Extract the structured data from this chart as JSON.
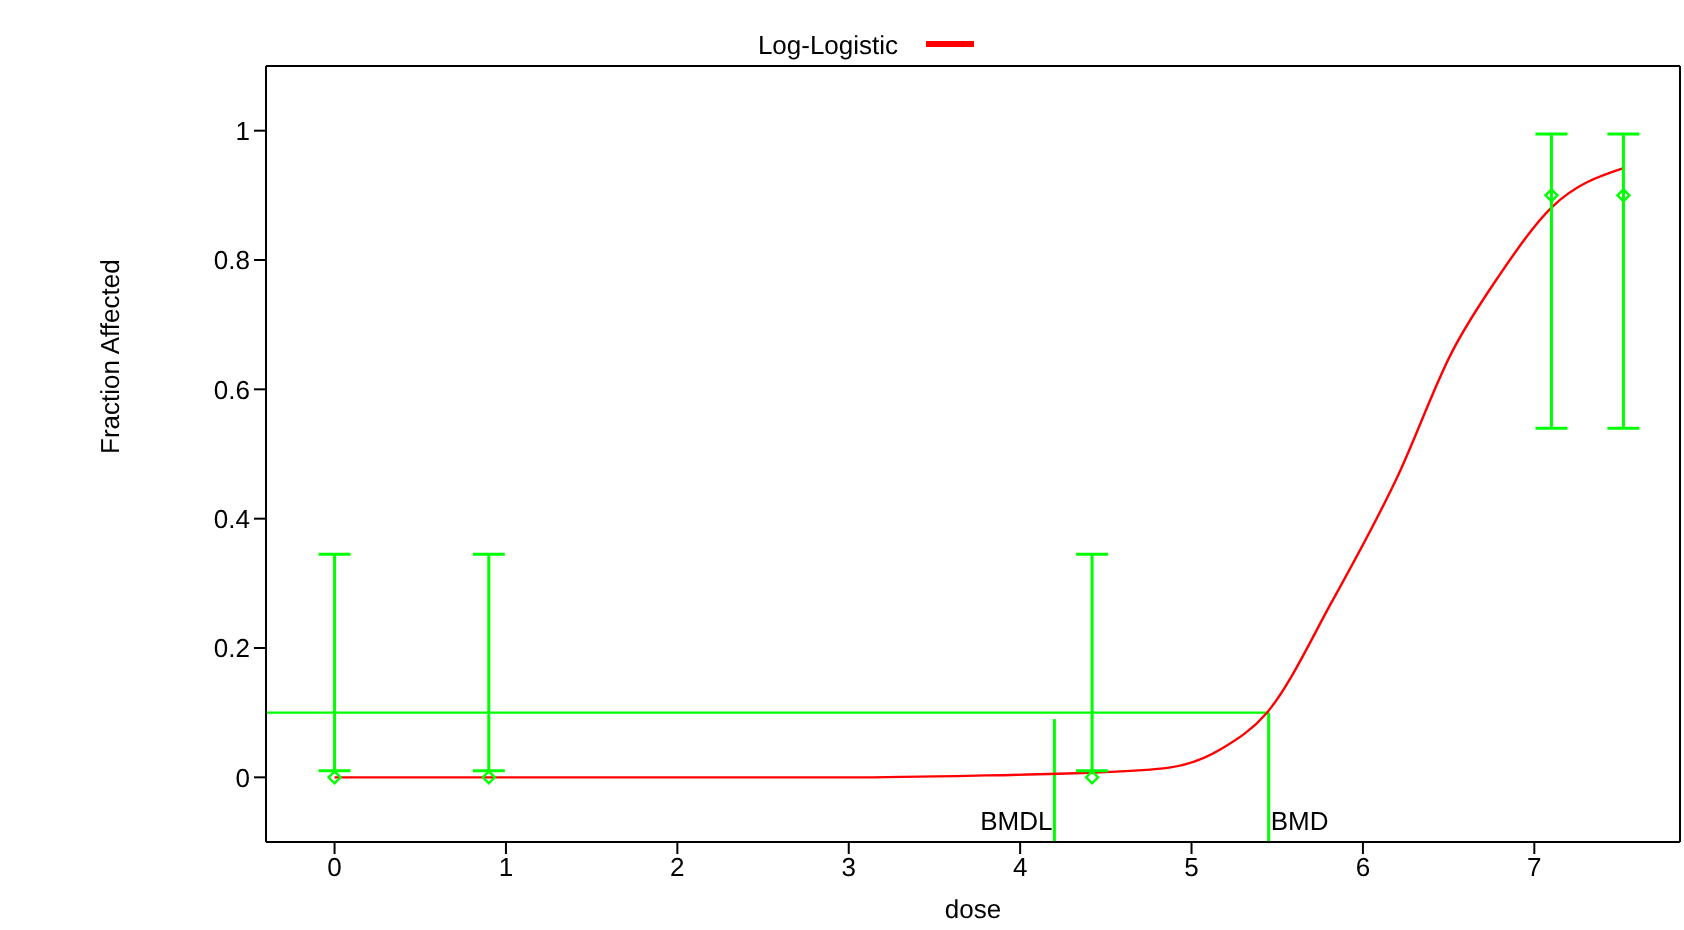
{
  "chart_data": {
    "type": "scatter",
    "xlabel": "dose",
    "ylabel": "Fraction Affected",
    "xlim": [
      -0.4,
      7.85
    ],
    "xticks": [
      0,
      1,
      2,
      3,
      4,
      5,
      6,
      7
    ],
    "ylim": [
      -0.1,
      1.1
    ],
    "yticks": [
      0,
      0.2,
      0.4,
      0.6,
      0.8,
      1
    ],
    "grid": false,
    "legend": "top",
    "marker": "diamond",
    "series": [
      {
        "name": "Log-Logistic",
        "type": "line",
        "color": "#ff0000",
        "marker": "none",
        "x": [
          0,
          1,
          2,
          3,
          3.8,
          4.4,
          4.87,
          5.18,
          5.44,
          5.82,
          6.2,
          6.52,
          6.79,
          7.1,
          7.52
        ],
        "values": [
          0,
          0,
          0,
          0,
          0.003,
          0.007,
          0.015,
          0.045,
          0.1,
          0.272,
          0.464,
          0.658,
          0.774,
          0.881,
          0.942
        ]
      },
      {
        "color": "#00ff00",
        "x": [
          0,
          0.9,
          4.42,
          7.1,
          7.52
        ],
        "values": [
          0,
          0,
          0,
          0.9,
          0.9
        ],
        "errors": [
          [
            0.01,
            0.345
          ],
          [
            0.01,
            0.345
          ],
          [
            0.01,
            0.345
          ],
          [
            0.54,
            0.995
          ],
          [
            0.54,
            0.995
          ]
        ]
      }
    ],
    "ref_lines": [
      {
        "axis": "y",
        "value": 0.1,
        "color": "#00ff00"
      },
      {
        "axis": "x",
        "value": 4.2,
        "label": "BMDL",
        "color": "#00ff00"
      },
      {
        "axis": "x",
        "value": 5.45,
        "label": "BMD",
        "color": "#00ff00"
      }
    ]
  }
}
